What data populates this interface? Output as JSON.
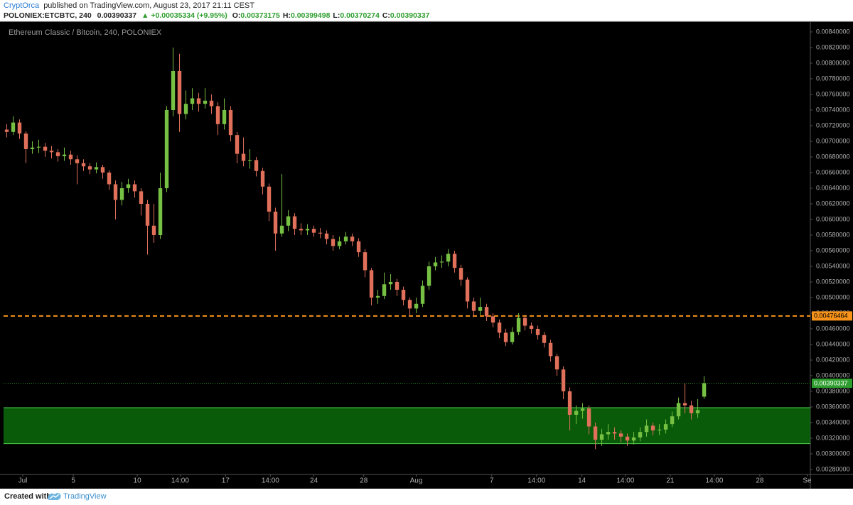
{
  "header": {
    "author": "CryptOrca",
    "published": "published on TradingView.com, August 23, 2017 21:11 CEST",
    "symbol": "POLONIEX:ETCBTC, 240",
    "price": "0.00390337",
    "change": "▲ +0.00035334 (+9.95%)",
    "ohlc": [
      {
        "label": "O:",
        "value": "0.00373175"
      },
      {
        "label": "H:",
        "value": "0.00399498"
      },
      {
        "label": "L:",
        "value": "0.00370274"
      },
      {
        "label": "C:",
        "value": "0.00390337"
      }
    ]
  },
  "chart_data": {
    "type": "candlestick",
    "title": "Ethereum Classic / Bitcoin, 240, POLONIEX",
    "up_color": "#76c043",
    "down_color": "#e0705a",
    "xlim": [
      -0.5,
      125.6
    ],
    "xticks": [
      {
        "value": 2.5,
        "label": "Jul"
      },
      {
        "value": 10.4,
        "label": "5"
      },
      {
        "value": 20.4,
        "label": "10"
      },
      {
        "value": 27.1,
        "label": "14:00"
      },
      {
        "value": 34.2,
        "label": "17"
      },
      {
        "value": 41.2,
        "label": "14:00"
      },
      {
        "value": 48,
        "label": "24"
      },
      {
        "value": 55.8,
        "label": "28"
      },
      {
        "value": 64,
        "label": "Aug"
      },
      {
        "value": 75.8,
        "label": "7"
      },
      {
        "value": 82.8,
        "label": "14:00"
      },
      {
        "value": 89.9,
        "label": "14"
      },
      {
        "value": 96.7,
        "label": "14:00"
      },
      {
        "value": 103.7,
        "label": "21"
      },
      {
        "value": 110.6,
        "label": "14:00"
      },
      {
        "value": 117.7,
        "label": "28"
      },
      {
        "value": 125.1,
        "label": "Se"
      }
    ],
    "ylim": [
      0.002736,
      0.008536
    ],
    "yticks": [
      {
        "value": 0.0028,
        "label": "0.00280000"
      },
      {
        "value": 0.003,
        "label": "0.00300000"
      },
      {
        "value": 0.0032,
        "label": "0.00320000"
      },
      {
        "value": 0.0034,
        "label": "0.00340000"
      },
      {
        "value": 0.0036,
        "label": "0.00360000"
      },
      {
        "value": 0.0038,
        "label": "0.00380000"
      },
      {
        "value": 0.004,
        "label": "0.00400000"
      },
      {
        "value": 0.0042,
        "label": "0.00420000"
      },
      {
        "value": 0.0044,
        "label": "0.00440000"
      },
      {
        "value": 0.0046,
        "label": "0.00460000"
      },
      {
        "value": 0.0048,
        "label": "0.00480000"
      },
      {
        "value": 0.005,
        "label": "0.00500000"
      },
      {
        "value": 0.0052,
        "label": "0.00520000"
      },
      {
        "value": 0.0054,
        "label": "0.00540000"
      },
      {
        "value": 0.0056,
        "label": "0.00560000"
      },
      {
        "value": 0.0058,
        "label": "0.00580000"
      },
      {
        "value": 0.006,
        "label": "0.00600000"
      },
      {
        "value": 0.0062,
        "label": "0.00620000"
      },
      {
        "value": 0.0064,
        "label": "0.00640000"
      },
      {
        "value": 0.0066,
        "label": "0.00660000"
      },
      {
        "value": 0.0068,
        "label": "0.00680000"
      },
      {
        "value": 0.007,
        "label": "0.00700000"
      },
      {
        "value": 0.0072,
        "label": "0.00720000"
      },
      {
        "value": 0.0074,
        "label": "0.00740000"
      },
      {
        "value": 0.0076,
        "label": "0.00760000"
      },
      {
        "value": 0.0078,
        "label": "0.00780000"
      },
      {
        "value": 0.008,
        "label": "0.00800000"
      },
      {
        "value": 0.0082,
        "label": "0.00820000"
      },
      {
        "value": 0.0084,
        "label": "0.00840000"
      }
    ],
    "open": [
      0.00715,
      0.00712,
      0.00724,
      0.0071,
      0.0069,
      0.00692,
      0.00693,
      0.00688,
      0.00686,
      0.00681,
      0.00683,
      0.00677,
      0.00672,
      0.00668,
      0.00664,
      0.00667,
      0.0066,
      0.00645,
      0.00625,
      0.0064,
      0.00645,
      0.00636,
      0.0062,
      0.00592,
      0.0058,
      0.0064,
      0.0074,
      0.0079,
      0.00735,
      0.00748,
      0.00755,
      0.00748,
      0.00752,
      0.00745,
      0.00722,
      0.0074,
      0.00708,
      0.00684,
      0.00675,
      0.00676,
      0.00662,
      0.00642,
      0.0061,
      0.00582,
      0.00592,
      0.00604,
      0.00588,
      0.00586,
      0.00588,
      0.00583,
      0.00582,
      0.00575,
      0.00566,
      0.00572,
      0.00578,
      0.00572,
      0.00558,
      0.00535,
      0.005,
      0.00502,
      0.00517,
      0.0052,
      0.0051,
      0.00497,
      0.00486,
      0.00492,
      0.00515,
      0.0054,
      0.00545,
      0.00546,
      0.00556,
      0.00538,
      0.00523,
      0.00495,
      0.00483,
      0.00488,
      0.00476,
      0.00468,
      0.00455,
      0.00443,
      0.00456,
      0.00474,
      0.00464,
      0.0046,
      0.00452,
      0.00442,
      0.00425,
      0.00408,
      0.0038,
      0.0035,
      0.00355,
      0.00358,
      0.00335,
      0.00318,
      0.00325,
      0.00328,
      0.00326,
      0.00322,
      0.00317,
      0.00321,
      0.00328,
      0.00336,
      0.0033,
      0.00331,
      0.00338,
      0.00348,
      0.00365,
      0.00362,
      0.00352,
      0.00373175
    ],
    "high": [
      0.00722,
      0.00732,
      0.00728,
      0.00713,
      0.007,
      0.00702,
      0.00698,
      0.00694,
      0.0069,
      0.00692,
      0.00688,
      0.00682,
      0.00677,
      0.00672,
      0.00673,
      0.0067,
      0.00663,
      0.0065,
      0.00648,
      0.00652,
      0.0065,
      0.0064,
      0.00625,
      0.0062,
      0.0066,
      0.00745,
      0.0082,
      0.00812,
      0.00765,
      0.00768,
      0.00762,
      0.00768,
      0.0076,
      0.0075,
      0.00755,
      0.00745,
      0.00712,
      0.00705,
      0.0069,
      0.0068,
      0.00666,
      0.00646,
      0.00615,
      0.00658,
      0.00612,
      0.00608,
      0.00595,
      0.00594,
      0.00592,
      0.00589,
      0.00586,
      0.0058,
      0.00578,
      0.00584,
      0.00582,
      0.00576,
      0.00562,
      0.00538,
      0.0051,
      0.00532,
      0.0053,
      0.00524,
      0.00514,
      0.005,
      0.005,
      0.00522,
      0.00546,
      0.00552,
      0.00554,
      0.00562,
      0.0056,
      0.00542,
      0.00526,
      0.005,
      0.005,
      0.00492,
      0.0048,
      0.00472,
      0.0046,
      0.00462,
      0.0048,
      0.00478,
      0.00468,
      0.00464,
      0.00456,
      0.00446,
      0.00428,
      0.00412,
      0.00385,
      0.00362,
      0.00365,
      0.00362,
      0.0034,
      0.00332,
      0.00338,
      0.00334,
      0.0033,
      0.00326,
      0.00328,
      0.00334,
      0.00344,
      0.0034,
      0.00338,
      0.00344,
      0.00354,
      0.00372,
      0.0039,
      0.00368,
      0.0037,
      0.00399498
    ],
    "low": [
      0.00705,
      0.00708,
      0.00703,
      0.00672,
      0.00684,
      0.00685,
      0.0068,
      0.00678,
      0.00674,
      0.00675,
      0.0067,
      0.00645,
      0.00662,
      0.00658,
      0.00659,
      0.00652,
      0.00638,
      0.006,
      0.00618,
      0.00634,
      0.00628,
      0.00605,
      0.00555,
      0.0057,
      0.00575,
      0.00635,
      0.00732,
      0.00712,
      0.00728,
      0.0074,
      0.00738,
      0.00742,
      0.00735,
      0.00708,
      0.00715,
      0.007,
      0.00672,
      0.00668,
      0.00665,
      0.00655,
      0.00632,
      0.00598,
      0.0056,
      0.00578,
      0.00585,
      0.0058,
      0.0058,
      0.0058,
      0.00578,
      0.00576,
      0.00568,
      0.0056,
      0.00562,
      0.00568,
      0.00566,
      0.00552,
      0.00526,
      0.0049,
      0.00492,
      0.00498,
      0.0051,
      0.00502,
      0.0049,
      0.00476,
      0.0048,
      0.00488,
      0.0051,
      0.00535,
      0.00538,
      0.0054,
      0.00532,
      0.00515,
      0.00486,
      0.00475,
      0.00478,
      0.0047,
      0.00462,
      0.00448,
      0.00438,
      0.0044,
      0.00452,
      0.00458,
      0.00454,
      0.00446,
      0.00436,
      0.00418,
      0.004,
      0.0037,
      0.0033,
      0.00338,
      0.00345,
      0.00325,
      0.00306,
      0.0031,
      0.00318,
      0.00318,
      0.00315,
      0.0031,
      0.00312,
      0.00316,
      0.00322,
      0.00324,
      0.00324,
      0.00326,
      0.00334,
      0.00344,
      0.00352,
      0.00344,
      0.00346,
      0.00370274
    ],
    "close": [
      0.00712,
      0.00724,
      0.0071,
      0.0069,
      0.00692,
      0.00693,
      0.00688,
      0.00686,
      0.00681,
      0.00683,
      0.00677,
      0.00672,
      0.00668,
      0.00664,
      0.00667,
      0.0066,
      0.00645,
      0.00625,
      0.0064,
      0.00645,
      0.00636,
      0.0062,
      0.00592,
      0.0058,
      0.0064,
      0.0074,
      0.0079,
      0.00735,
      0.00748,
      0.00755,
      0.00748,
      0.00752,
      0.00745,
      0.00722,
      0.0074,
      0.00708,
      0.00684,
      0.00675,
      0.00676,
      0.00662,
      0.00642,
      0.0061,
      0.00582,
      0.00592,
      0.00604,
      0.00588,
      0.00586,
      0.00588,
      0.00583,
      0.00582,
      0.00575,
      0.00566,
      0.00572,
      0.00578,
      0.00572,
      0.00558,
      0.00535,
      0.005,
      0.00502,
      0.00517,
      0.0052,
      0.0051,
      0.00497,
      0.00486,
      0.00492,
      0.00515,
      0.0054,
      0.00545,
      0.00546,
      0.00556,
      0.00538,
      0.00523,
      0.00495,
      0.00483,
      0.00488,
      0.00476,
      0.00468,
      0.00455,
      0.00443,
      0.00456,
      0.00474,
      0.00464,
      0.0046,
      0.00452,
      0.00442,
      0.00425,
      0.00408,
      0.0038,
      0.0035,
      0.00355,
      0.00358,
      0.00335,
      0.00318,
      0.00325,
      0.00328,
      0.00326,
      0.00322,
      0.00317,
      0.00321,
      0.00328,
      0.00336,
      0.0033,
      0.00331,
      0.00338,
      0.00348,
      0.00365,
      0.00362,
      0.00352,
      0.00356,
      0.00390337
    ],
    "levels": [
      {
        "value": 0.00476464,
        "color": "#f7931a",
        "dashed": true
      },
      {
        "value": 0.00390337,
        "color": "#2e9e2e",
        "dashed": false
      }
    ],
    "zones": [
      {
        "from": 0.00313,
        "to": 0.00359,
        "color": "#0b6b0b",
        "edge": "#4fcf4f"
      }
    ]
  },
  "footer": {
    "created": "Created with",
    "brand": "TradingView"
  }
}
